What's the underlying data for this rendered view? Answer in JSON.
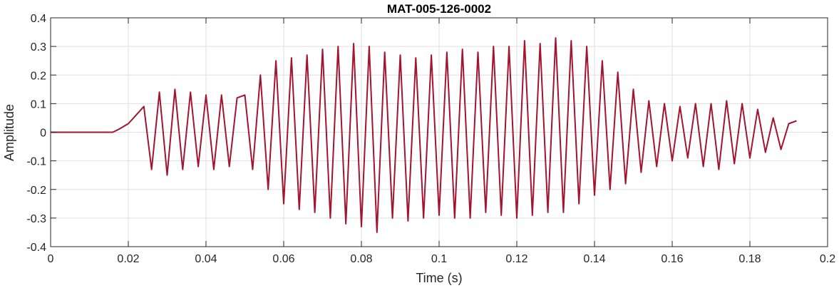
{
  "chart_data": {
    "type": "line",
    "title": "MAT-005-126-0002",
    "xlabel": "Time (s)",
    "ylabel": "Amplitude",
    "xlim": [
      0,
      0.2
    ],
    "ylim": [
      -0.4,
      0.4
    ],
    "xticks": [
      0,
      0.02,
      0.04,
      0.06,
      0.08,
      0.1,
      0.12,
      0.14,
      0.16,
      0.18,
      0.2
    ],
    "xtick_labels": [
      "0",
      "0.02",
      "0.04",
      "0.06",
      "0.08",
      "0.1",
      "0.12",
      "0.14",
      "0.16",
      "0.18",
      "0.2"
    ],
    "yticks": [
      -0.4,
      -0.3,
      -0.2,
      -0.1,
      0,
      0.1,
      0.2,
      0.3,
      0.4
    ],
    "ytick_labels": [
      "-0.4",
      "-0.3",
      "-0.2",
      "-0.1",
      "0",
      "0.1",
      "0.2",
      "0.3",
      "0.4"
    ],
    "grid": true,
    "line_color": "#a2142f",
    "series": [
      {
        "x": [
          0,
          0.016,
          0.0175,
          0.02,
          0.024,
          0.026,
          0.028,
          0.03,
          0.032,
          0.034,
          0.036,
          0.038,
          0.04,
          0.042,
          0.044,
          0.046,
          0.048,
          0.05,
          0.052,
          0.054,
          0.056,
          0.058,
          0.06,
          0.062,
          0.064,
          0.066,
          0.068,
          0.07,
          0.072,
          0.074,
          0.076,
          0.078,
          0.08,
          0.082,
          0.084,
          0.086,
          0.088,
          0.09,
          0.092,
          0.094,
          0.096,
          0.098,
          0.1,
          0.102,
          0.104,
          0.106,
          0.108,
          0.11,
          0.112,
          0.114,
          0.116,
          0.118,
          0.12,
          0.122,
          0.124,
          0.126,
          0.128,
          0.13,
          0.132,
          0.134,
          0.136,
          0.138,
          0.14,
          0.142,
          0.144,
          0.146,
          0.148,
          0.15,
          0.152,
          0.154,
          0.156,
          0.158,
          0.16,
          0.162,
          0.164,
          0.166,
          0.168,
          0.17,
          0.172,
          0.174,
          0.176,
          0.178,
          0.18,
          0.182,
          0.184,
          0.186,
          0.188,
          0.19,
          0.192
        ],
        "y": [
          0,
          0.0,
          0.01,
          0.03,
          0.09,
          -0.13,
          0.14,
          -0.15,
          0.15,
          -0.13,
          0.14,
          -0.12,
          0.13,
          -0.13,
          0.13,
          -0.12,
          0.12,
          0.13,
          -0.13,
          0.2,
          -0.2,
          0.25,
          -0.25,
          0.26,
          -0.27,
          0.27,
          -0.28,
          0.29,
          -0.3,
          0.3,
          -0.32,
          0.31,
          -0.33,
          0.3,
          -0.35,
          0.28,
          -0.3,
          0.27,
          -0.31,
          0.26,
          -0.3,
          0.27,
          -0.29,
          0.28,
          -0.3,
          0.29,
          -0.3,
          0.28,
          -0.28,
          0.3,
          -0.29,
          0.3,
          -0.3,
          0.32,
          -0.29,
          0.31,
          -0.28,
          0.33,
          -0.28,
          0.32,
          -0.25,
          0.3,
          -0.22,
          0.25,
          -0.2,
          0.21,
          -0.18,
          0.15,
          -0.14,
          0.11,
          -0.12,
          0.1,
          -0.1,
          0.09,
          -0.09,
          0.1,
          -0.12,
          0.1,
          -0.13,
          0.11,
          -0.11,
          0.1,
          -0.09,
          0.08,
          -0.07,
          0.05,
          -0.06,
          0.03,
          0.04
        ]
      }
    ]
  }
}
